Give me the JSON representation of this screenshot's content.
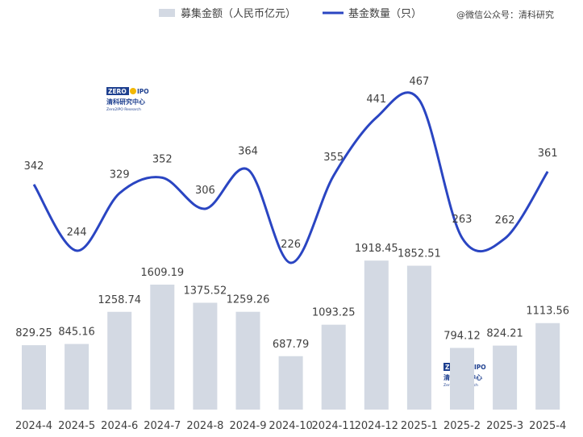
{
  "legend": {
    "bar_label": "募集金额（人民币亿元）",
    "line_label": "基金数量（只）"
  },
  "watermark": {
    "top_right": "@微信公众号：清科研究",
    "logo_text_a": "ZERO",
    "logo_text_b": "IPO",
    "logo_cn": "清科研究中心",
    "logo_en": "Zero2IPO Research"
  },
  "colors": {
    "bar": "#d3d9e3",
    "line": "#2a45c2",
    "text": "#404040"
  },
  "chart_data": {
    "type": "bar",
    "categories": [
      "2024-4",
      "2024-5",
      "2024-6",
      "2024-7",
      "2024-8",
      "2024-9",
      "2024-10",
      "2024-11",
      "2024-12",
      "2025-1",
      "2025-2",
      "2025-3",
      "2025-4"
    ],
    "series": [
      {
        "name": "募集金额（人民币亿元）",
        "type": "bar",
        "values": [
          829.25,
          845.16,
          1258.74,
          1609.19,
          1375.52,
          1259.26,
          687.79,
          1093.25,
          1918.45,
          1852.51,
          794.12,
          824.21,
          1113.56
        ],
        "labels": [
          "829.25",
          "845.16",
          "1258.74",
          "1609.19",
          "1375.52",
          "1259.26",
          "687.79",
          "1093.25",
          "1918.45",
          "1852.51",
          "794.12",
          "824.21",
          "1113.56"
        ]
      },
      {
        "name": "基金数量（只）",
        "type": "line",
        "values": [
          342,
          244,
          329,
          352,
          306,
          364,
          226,
          355,
          441,
          467,
          263,
          262,
          361
        ],
        "labels": [
          "342",
          "244",
          "329",
          "352",
          "306",
          "364",
          "226",
          "355",
          "441",
          "467",
          "263",
          "262",
          "361"
        ]
      }
    ],
    "legend_position": "top",
    "grid": false
  }
}
